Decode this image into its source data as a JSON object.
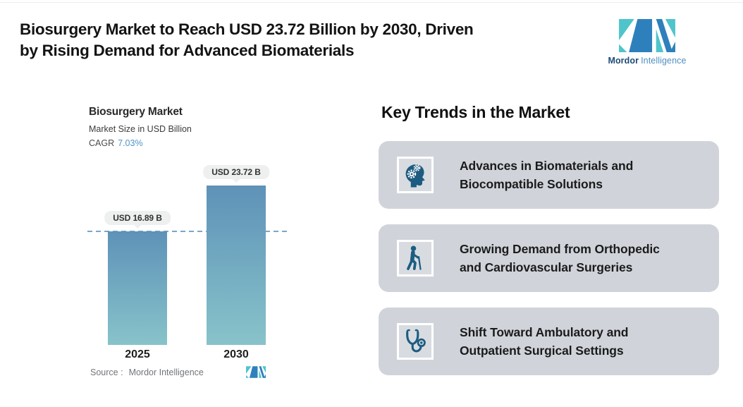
{
  "header": {
    "title_lines": [
      "Biosurgery Market to Reach USD 23.72 Billion by 2030, Driven",
      "by Rising Demand for Advanced Biomaterials"
    ]
  },
  "brand": {
    "name_primary": "Mordor",
    "name_secondary": "Intelligence"
  },
  "chart": {
    "title": "Biosurgery Market",
    "subtitle": "Market Size in USD Billion",
    "cagr_label": "CAGR",
    "cagr_value": "7.03%",
    "value_labels": [
      "USD 16.89 B",
      "USD 23.72 B"
    ],
    "source_label": "Source :",
    "source_value": "Mordor Intelligence"
  },
  "chart_data": {
    "type": "bar",
    "title": "Biosurgery Market",
    "ylabel": "Market Size in USD Billion",
    "categories": [
      "2025",
      "2030"
    ],
    "values": [
      16.89,
      23.72
    ],
    "cagr_percent": 7.03,
    "reference_line_value": 16.89,
    "value_labels": [
      "USD 16.89 B",
      "USD 23.72 B"
    ],
    "grid": false,
    "legend": false,
    "ylim": [
      0,
      27
    ]
  },
  "key_trends": {
    "heading": "Key Trends in the Market",
    "cards": [
      {
        "icon": "head-gears-icon",
        "lines": [
          "Advances in Biomaterials and",
          "Biocompatible Solutions"
        ]
      },
      {
        "icon": "person-cane-icon",
        "lines": [
          "Growing Demand from Orthopedic",
          "and Cardiovascular Surgeries"
        ]
      },
      {
        "icon": "stethoscope-icon",
        "lines": [
          "Shift Toward Ambulatory and",
          "Outpatient Surgical Settings"
        ]
      }
    ]
  },
  "colors": {
    "accent_blue": "#4F94C9",
    "bar_top": "#5E92B8",
    "bar_bottom": "#88C3CA",
    "dashed_line": "#79A7C9",
    "pill_bg": "#EDF0EF",
    "card_bg": "#D0D4DA",
    "icon_dark": "#1D5C80",
    "brand_teal": "#4FC4CB",
    "brand_blue": "#2E80BC",
    "brand_dark": "#1D4B73"
  }
}
